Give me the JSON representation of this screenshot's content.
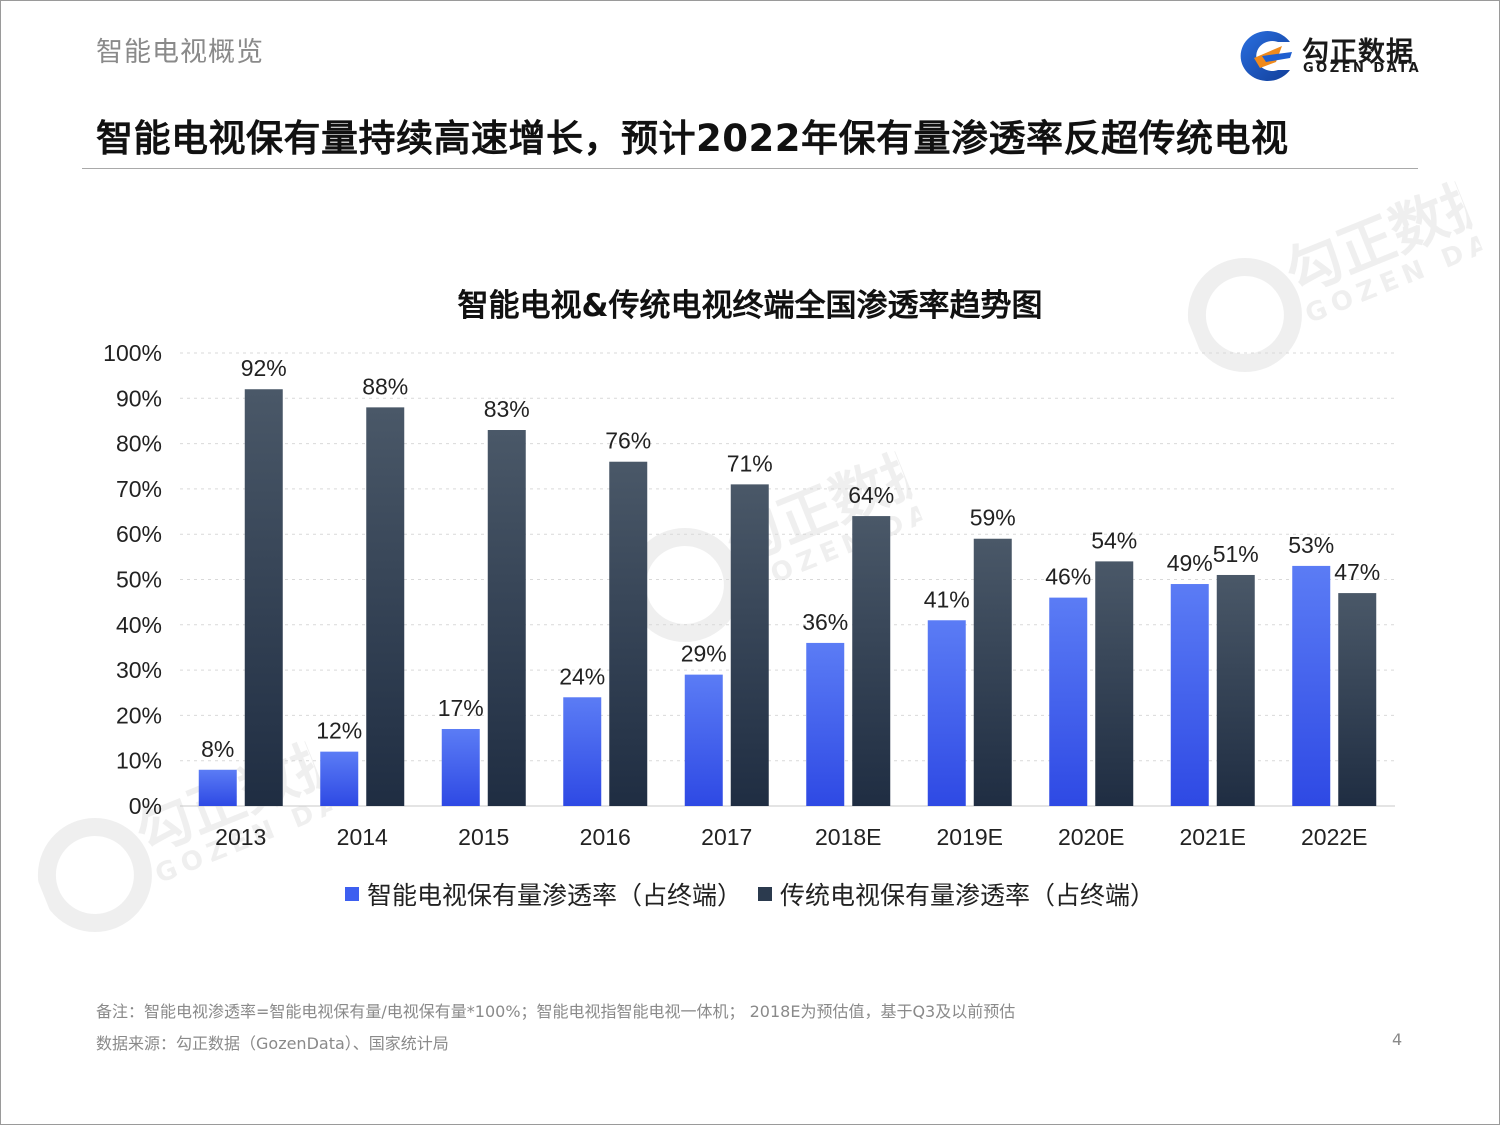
{
  "header": {
    "section_title": "智能电视概览",
    "brand_cn": "勾正数据",
    "brand_en": "GOZEN DATA"
  },
  "headline": "智能电视保有量持续高速增长，预计2022年保有量渗透率反超传统电视",
  "footer": {
    "note": "备注：智能电视渗透率=智能电视保有量/电视保有量*100%；智能电视指智能电视一体机；  2018E为预估值，基于Q3及以前预估",
    "source": "数据来源：勾正数据（GozenData）、国家统计局",
    "page_number": "4"
  },
  "colors": {
    "smart": "#3d5ff0",
    "traditional": "#2b3a4e",
    "brand_blue": "#1f5fd0",
    "brand_orange": "#f08a1c"
  },
  "chart_data": {
    "type": "bar",
    "title": "智能电视&传统电视终端全国渗透率趋势图",
    "categories": [
      "2013",
      "2014",
      "2015",
      "2016",
      "2017",
      "2018E",
      "2019E",
      "2020E",
      "2021E",
      "2022E"
    ],
    "series": [
      {
        "name": "智能电视保有量渗透率（占终端）",
        "values": [
          8,
          12,
          17,
          24,
          29,
          36,
          41,
          46,
          49,
          53
        ],
        "labels": [
          "8%",
          "12%",
          "17%",
          "24%",
          "29%",
          "36%",
          "41%",
          "46%",
          "49%",
          "53%"
        ]
      },
      {
        "name": "传统电视保有量渗透率（占终端）",
        "values": [
          92,
          88,
          83,
          76,
          71,
          64,
          59,
          54,
          51,
          47
        ],
        "labels": [
          "92%",
          "88%",
          "83%",
          "76%",
          "71%",
          "64%",
          "59%",
          "54%",
          "51%",
          "47%"
        ]
      }
    ],
    "y_ticks": [
      "0%",
      "10%",
      "20%",
      "30%",
      "40%",
      "50%",
      "60%",
      "70%",
      "80%",
      "90%",
      "100%"
    ],
    "ylim": [
      0,
      100
    ],
    "grid": true,
    "legend_position": "bottom"
  }
}
